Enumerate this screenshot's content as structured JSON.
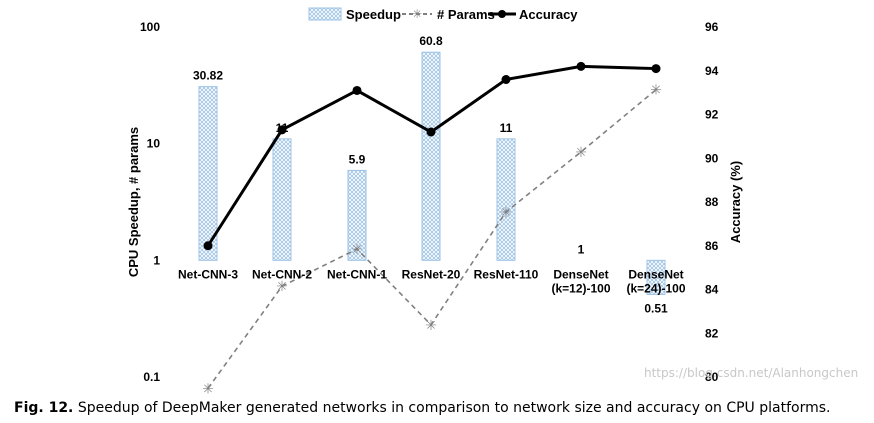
{
  "chart_data": {
    "type": "bar+line",
    "categories": [
      "Net-CNN-3",
      "Net-CNN-2",
      "Net-CNN-1",
      "ResNet-20",
      "ResNet-110",
      "DenseNet\n(k=12)-100",
      "DenseNet\n(k=24)-100"
    ],
    "series": [
      {
        "name": "Speedup",
        "type": "bar",
        "axis": "left",
        "values": [
          30.82,
          11,
          5.9,
          60.8,
          11,
          1,
          0.51
        ],
        "labels": [
          "30.82",
          "11",
          "5.9",
          "60.8",
          "11",
          "1",
          "0.51"
        ]
      },
      {
        "name": "# Params",
        "type": "line",
        "axis": "left",
        "style": "dashed",
        "marker": "asterisk",
        "values": [
          0.08,
          0.6,
          1.25,
          0.28,
          2.6,
          8.5,
          29
        ]
      },
      {
        "name": "Accuracy",
        "type": "line",
        "axis": "right",
        "style": "solid",
        "marker": "circle",
        "values": [
          86.0,
          91.3,
          93.1,
          91.2,
          93.6,
          94.2,
          94.1
        ]
      }
    ],
    "ylabel": "CPU Speedup, # params",
    "y2label": "Accuracy (%)",
    "y_scale": "log",
    "ylim": [
      0.1,
      100
    ],
    "y_ticks": [
      "100",
      "10",
      "1",
      "0.1"
    ],
    "y2lim": [
      80,
      96
    ],
    "y2_ticks": [
      "96",
      "94",
      "92",
      "90",
      "88",
      "86",
      "84",
      "82",
      "80"
    ],
    "legend": "top-center",
    "colors": {
      "speedup_fill": "#9dc3e6",
      "params": "#808080",
      "accuracy": "#000000"
    }
  },
  "caption": {
    "label": "Fig. 12.",
    "text": "Speedup of DeepMaker generated networks in comparison to network size and accuracy on CPU platforms."
  },
  "watermark": "https://blog.csdn.net/Alanhongchen"
}
